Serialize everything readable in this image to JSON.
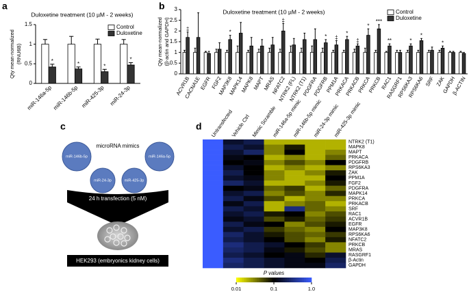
{
  "chart_data": [
    {
      "type": "bar",
      "panel_label": "a",
      "title": "Duloxetine treatment (10 µM - 2 weeks)",
      "y_label": [
        "Qty mean-normalized",
        "(RNU6B)"
      ],
      "categories": [
        "miR-146a-5p",
        "miR-146b-5p",
        "miR-425-3p",
        "miR-24-3p"
      ],
      "series": [
        {
          "name": "Control",
          "color": "#ffffff",
          "values": [
            1.0,
            1.0,
            1.0,
            1.0
          ],
          "errors": [
            0.12,
            0.2,
            0.13,
            0.12
          ],
          "significance": [
            null,
            null,
            null,
            null
          ]
        },
        {
          "name": "Duloxetine",
          "color": "#333333",
          "values": [
            0.42,
            0.37,
            0.3,
            0.47
          ],
          "errors": [
            0.07,
            0.05,
            0.06,
            0.06
          ],
          "significance": [
            "*",
            "*",
            "*",
            "*"
          ]
        }
      ],
      "ylim": [
        0,
        1.5
      ],
      "yticks": [
        0,
        0.5,
        1,
        1.5
      ],
      "legend": "upper right"
    },
    {
      "type": "bar",
      "panel_label": "b",
      "title": "Duloxetine treatment (10 µM - 2 weeks)",
      "y_label": [
        "Qty mean-normalized",
        "(β-actin and GAPDH)"
      ],
      "categories": [
        "ACVR1B",
        "CACNA1E",
        "EGFR",
        "FGF2",
        "MAP3K8",
        "MAPK14",
        "MAPK8",
        "MAPT",
        "MRAS",
        "NFATC2",
        "NTRK2 (FL)",
        "NTRK2 (T1)",
        "PDGFRA",
        "PDGFRB",
        "PPM1A",
        "PRKACA",
        "PRKACB",
        "PRKCA",
        "PRKCB",
        "RAC1",
        "RASGRF1",
        "RPS6KA3",
        "RPS6KA6",
        "SRF",
        "ZAK",
        "GAPDH",
        "β-ACTIN"
      ],
      "series": [
        {
          "name": "Control",
          "color": "#ffffff",
          "values": [
            1,
            1,
            1,
            1,
            1,
            1,
            1,
            1,
            1,
            1,
            1,
            1,
            1,
            1,
            1,
            1,
            1,
            1,
            1,
            1,
            1,
            1,
            1,
            1,
            1,
            1,
            1
          ],
          "errors": [
            0.1,
            0.2,
            0.05,
            0.15,
            0.1,
            0.3,
            0.1,
            0.15,
            0.2,
            0.15,
            0.3,
            0.2,
            0.3,
            0.2,
            0.1,
            0.1,
            0.15,
            0.2,
            0.1,
            0.05,
            0.1,
            0.1,
            0.1,
            0.1,
            0.1,
            0.05,
            0.05
          ],
          "significance": [
            null,
            null,
            null,
            null,
            null,
            null,
            null,
            null,
            null,
            null,
            null,
            null,
            null,
            null,
            null,
            null,
            null,
            null,
            null,
            null,
            null,
            null,
            null,
            null,
            null,
            null,
            null
          ]
        },
        {
          "name": "Duloxetine",
          "color": "#333333",
          "values": [
            1.7,
            1.7,
            0.95,
            1.15,
            1.6,
            1.9,
            1.3,
            1.3,
            1.35,
            2.0,
            1.35,
            1.6,
            1.6,
            1.45,
            1.35,
            1.6,
            1.3,
            1.8,
            2.1,
            1.3,
            1.0,
            1.3,
            1.55,
            1.1,
            1.2,
            1.0,
            0.95
          ],
          "errors": [
            0.25,
            1.15,
            0.1,
            0.3,
            0.2,
            0.5,
            0.4,
            0.3,
            0.35,
            0.35,
            0.3,
            0.3,
            0.5,
            0.15,
            0.2,
            0.15,
            0.1,
            0.3,
            0.2,
            0.1,
            0.1,
            0.1,
            0.1,
            0.15,
            0.1,
            0.05,
            0.05
          ],
          "significance": [
            "‡",
            null,
            null,
            null,
            "*",
            null,
            null,
            null,
            null,
            "‡",
            null,
            null,
            null,
            "*",
            "‡",
            "*",
            "‡",
            "*",
            "***",
            "**",
            null,
            "*",
            "*",
            null,
            "*",
            null,
            null
          ]
        }
      ],
      "ylim": [
        0,
        3
      ],
      "yticks": [
        0,
        0.5,
        1,
        1.5,
        2,
        2.5,
        3
      ],
      "legend": "upper right"
    },
    {
      "type": "heatmap",
      "panel_label": "d",
      "columns": [
        "Untransfected",
        "Vehicle Ctrl",
        "Mimic Scramble",
        "miR-146a-5p mimic",
        "miR-146b-5p mimic",
        "miR-24-3p mimic",
        "miR-425-3p mimic"
      ],
      "rows": [
        "NTRK2 (T1)",
        "MAPK8",
        "MAPT",
        "PRKACA",
        "PDGFRB",
        "RPS6KA3",
        "ZAK",
        "PPM1A",
        "FGF2",
        "PDGFRA",
        "MAPK14",
        "PRKCA",
        "PRKACB",
        "SRF",
        "RAC1",
        "ACVR1B",
        "EGFR",
        "MAP3K8",
        "RPS6KA6",
        "NFATC2",
        "PRKCB",
        "MRAS",
        "RASGRF1",
        "β-Actin",
        "GAPDH"
      ],
      "values": [
        [
          1,
          0.15,
          0.2,
          0.02,
          0.02,
          0.02,
          0.02
        ],
        [
          1,
          0.2,
          0.15,
          0.03,
          0.08,
          0.02,
          0.02
        ],
        [
          1,
          0.15,
          0.25,
          0.03,
          0.1,
          0.02,
          0.03
        ],
        [
          1,
          0.12,
          0.1,
          0.02,
          0.03,
          0.02,
          0.04
        ],
        [
          1,
          0.1,
          0.12,
          0.03,
          0.05,
          0.03,
          0.1
        ],
        [
          1,
          0.15,
          0.1,
          0.02,
          0.03,
          0.02,
          0.03
        ],
        [
          1,
          0.2,
          0.1,
          0.03,
          0.02,
          0.03,
          0.08
        ],
        [
          1,
          0.15,
          0.12,
          0.03,
          0.02,
          0.02,
          0.1
        ],
        [
          1,
          0.25,
          0.15,
          0.02,
          0.02,
          0.03,
          0.08
        ],
        [
          1,
          0.1,
          0.12,
          0.04,
          0.06,
          0.02,
          0.04
        ],
        [
          1,
          0.15,
          0.2,
          0.03,
          0.05,
          0.03,
          0.07
        ],
        [
          1,
          0.2,
          0.12,
          0.05,
          0.02,
          0.03,
          0.03
        ],
        [
          1,
          0.12,
          0.2,
          0.02,
          0.03,
          0.04,
          0.02
        ],
        [
          1,
          0.2,
          0.15,
          0.02,
          0.3,
          0.04,
          0.03
        ],
        [
          1,
          0.15,
          0.2,
          0.08,
          0.1,
          0.03,
          0.05
        ],
        [
          1,
          0.12,
          0.15,
          0.05,
          0.08,
          0.04,
          0.06
        ],
        [
          1,
          0.2,
          0.12,
          0.1,
          0.03,
          0.05,
          0.08
        ],
        [
          1,
          0.15,
          0.2,
          0.06,
          0.04,
          0.03,
          0.1
        ],
        [
          1,
          0.25,
          0.15,
          0.08,
          0.05,
          0.04,
          0.06
        ],
        [
          1,
          0.2,
          0.15,
          0.1,
          0.05,
          0.03,
          0.08
        ],
        [
          1,
          0.3,
          0.2,
          0.15,
          0.1,
          0.06,
          0.03
        ],
        [
          1,
          0.25,
          0.2,
          0.12,
          0.08,
          0.05,
          0.03
        ],
        [
          1,
          0.2,
          0.15,
          0.1,
          0.12,
          0.07,
          0.15
        ],
        [
          1,
          0.3,
          0.2,
          0.15,
          0.12,
          0.1,
          0.2
        ],
        [
          1,
          0.25,
          0.2,
          0.15,
          0.12,
          0.12,
          0.25
        ]
      ],
      "colorbar_label": "P values",
      "zlim": [
        0.01,
        1
      ],
      "zticks": [
        0.01,
        0.1,
        {
          "value": 1,
          "label": "1.0"
        }
      ],
      "log_scale": true,
      "colors": [
        "#ffff00",
        "#000000",
        "#3a5cff"
      ]
    }
  ],
  "diagram": {
    "panel_label": "c",
    "title": "microRNA mimics",
    "mimics": [
      "miR-146b-5p",
      "miR-24-3p",
      "miR-425-3p",
      "miR-146a-5p"
    ],
    "step": "24 h transfection (5 nM)",
    "cells": "HEK293 (embryonics kidney cells)"
  }
}
